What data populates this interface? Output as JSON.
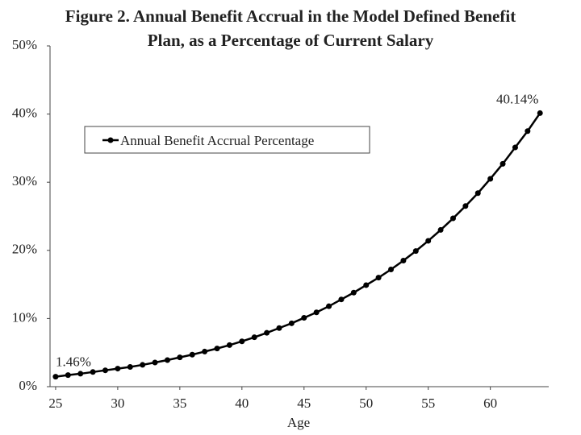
{
  "chart_data": {
    "type": "line",
    "title": "Figure 2. Annual Benefit Accrual in the Model Defined Benefit Plan, as a Percentage of Current Salary",
    "x_label": "Age",
    "x": [
      25,
      26,
      27,
      28,
      29,
      30,
      31,
      32,
      33,
      34,
      35,
      36,
      37,
      38,
      39,
      40,
      41,
      42,
      43,
      44,
      45,
      46,
      47,
      48,
      49,
      50,
      51,
      52,
      53,
      54,
      55,
      56,
      57,
      58,
      59,
      60,
      61,
      62,
      63,
      64
    ],
    "series": [
      {
        "name": "Annual Benefit Accrual Percentage",
        "color": "#000000",
        "values": [
          1.46,
          1.7,
          1.9,
          2.15,
          2.4,
          2.65,
          2.9,
          3.2,
          3.55,
          3.9,
          4.3,
          4.7,
          5.15,
          5.6,
          6.1,
          6.65,
          7.25,
          7.9,
          8.6,
          9.3,
          10.1,
          10.9,
          11.8,
          12.8,
          13.8,
          14.9,
          16.0,
          17.2,
          18.5,
          19.9,
          21.4,
          23.0,
          24.7,
          26.5,
          28.4,
          30.5,
          32.7,
          35.1,
          37.5,
          40.14
        ],
        "value_labels": [
          "1.46%",
          null,
          null,
          null,
          null,
          null,
          null,
          null,
          null,
          null,
          null,
          null,
          null,
          null,
          null,
          null,
          null,
          null,
          null,
          null,
          null,
          null,
          null,
          null,
          null,
          null,
          null,
          null,
          null,
          null,
          null,
          null,
          null,
          null,
          null,
          null,
          null,
          null,
          null,
          "40.14%"
        ]
      }
    ],
    "xlim": [
      24.55,
      64.7
    ],
    "xticks": [
      25,
      30,
      35,
      40,
      45,
      50,
      55,
      60
    ],
    "ylim": [
      0,
      50
    ],
    "yticks": [
      {
        "value": 0,
        "label": "0%"
      },
      {
        "value": 10,
        "label": "10%"
      },
      {
        "value": 20,
        "label": "20%"
      },
      {
        "value": 30,
        "label": "30%"
      },
      {
        "value": 40,
        "label": "40%"
      },
      {
        "value": 50,
        "label": "50%"
      }
    ],
    "grid": false
  }
}
